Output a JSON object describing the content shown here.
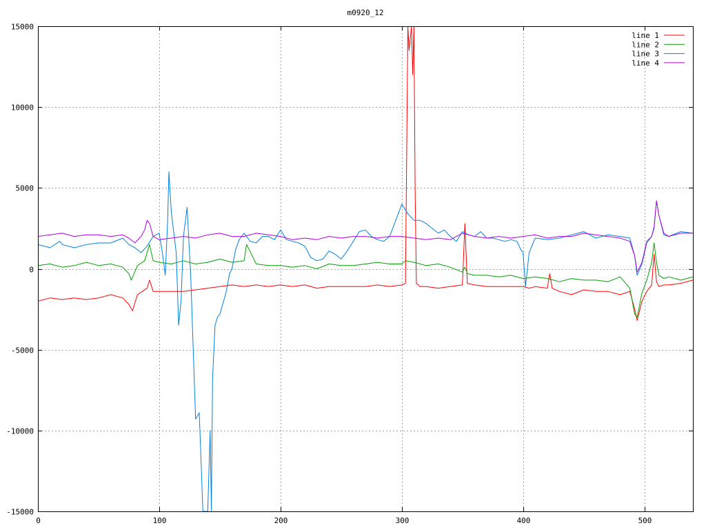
{
  "chart_data": {
    "type": "line",
    "title": "m0920_12",
    "xlim": [
      0,
      540
    ],
    "ylim": [
      -15000,
      15000
    ],
    "xticks": [
      0,
      100,
      200,
      300,
      400,
      500
    ],
    "yticks": [
      -15000,
      -10000,
      -5000,
      0,
      5000,
      10000,
      15000
    ],
    "grid": true,
    "legend_position": "top-right",
    "series": [
      {
        "name": "line 1",
        "color": "#ff0000",
        "x": [
          0,
          10,
          20,
          30,
          40,
          50,
          60,
          70,
          75,
          78,
          82,
          90,
          92,
          95,
          100,
          110,
          120,
          130,
          140,
          150,
          160,
          170,
          180,
          190,
          200,
          210,
          220,
          230,
          240,
          250,
          260,
          270,
          280,
          290,
          300,
          303,
          305,
          306,
          308,
          309,
          310,
          311,
          312,
          315,
          320,
          330,
          340,
          350,
          352,
          354,
          360,
          370,
          380,
          390,
          400,
          405,
          410,
          420,
          422,
          424,
          430,
          440,
          450,
          460,
          470,
          480,
          488,
          492,
          494,
          498,
          502,
          506,
          508,
          510,
          512,
          516,
          520,
          530,
          540
        ],
        "y": [
          -2000,
          -1800,
          -1900,
          -1800,
          -1900,
          -1800,
          -1600,
          -1800,
          -2200,
          -2600,
          -1600,
          -1200,
          -700,
          -1400,
          -1400,
          -1400,
          -1400,
          -1300,
          -1200,
          -1100,
          -1000,
          -1100,
          -1000,
          -1100,
          -1000,
          -1100,
          -1000,
          -1200,
          -1100,
          -1100,
          -1100,
          -1100,
          -1000,
          -1100,
          -1000,
          -900,
          15000,
          13500,
          15000,
          12000,
          15000,
          5000,
          -900,
          -1100,
          -1100,
          -1200,
          -1100,
          -1000,
          2800,
          -900,
          -1000,
          -1100,
          -1100,
          -1100,
          -1100,
          -1200,
          -1100,
          -1200,
          -300,
          -1200,
          -1400,
          -1600,
          -1300,
          -1400,
          -1400,
          -1600,
          -1400,
          -2500,
          -3200,
          -2000,
          -1400,
          -1000,
          900,
          -800,
          -1100,
          -1000,
          -1000,
          -900,
          -700
        ]
      },
      {
        "name": "line 2",
        "color": "#00a000",
        "x": [
          0,
          10,
          20,
          30,
          40,
          50,
          60,
          70,
          75,
          77,
          82,
          88,
          92,
          95,
          100,
          110,
          120,
          130,
          140,
          150,
          160,
          170,
          172,
          180,
          190,
          200,
          210,
          220,
          230,
          240,
          250,
          260,
          270,
          280,
          290,
          300,
          303,
          310,
          320,
          330,
          340,
          350,
          352,
          354,
          360,
          370,
          380,
          390,
          400,
          410,
          420,
          430,
          440,
          450,
          460,
          470,
          480,
          488,
          492,
          494,
          498,
          502,
          506,
          508,
          510,
          512,
          516,
          520,
          530,
          540
        ],
        "y": [
          200,
          300,
          100,
          200,
          400,
          200,
          300,
          100,
          -300,
          -700,
          200,
          500,
          1500,
          500,
          400,
          300,
          500,
          300,
          400,
          600,
          400,
          500,
          1500,
          300,
          200,
          200,
          100,
          200,
          0,
          300,
          200,
          200,
          300,
          400,
          300,
          300,
          500,
          400,
          200,
          300,
          100,
          -200,
          100,
          -300,
          -400,
          -400,
          -500,
          -400,
          -600,
          -500,
          -600,
          -800,
          -600,
          -700,
          -700,
          -800,
          -500,
          -1200,
          -2800,
          -3000,
          -1500,
          -700,
          400,
          1600,
          400,
          -400,
          -600,
          -500,
          -700,
          -500
        ]
      },
      {
        "name": "line 3",
        "color": "#0080e0",
        "x": [
          0,
          10,
          18,
          20,
          30,
          40,
          50,
          60,
          70,
          75,
          80,
          85,
          90,
          95,
          100,
          103,
          105,
          107,
          108,
          110,
          114,
          116,
          118,
          120,
          123,
          126,
          130,
          133,
          136,
          139,
          140,
          142,
          143,
          144,
          146,
          148,
          150,
          155,
          158,
          160,
          163,
          166,
          170,
          175,
          180,
          185,
          190,
          195,
          200,
          205,
          210,
          215,
          220,
          225,
          230,
          235,
          240,
          245,
          250,
          255,
          260,
          265,
          270,
          275,
          280,
          285,
          290,
          295,
          300,
          305,
          310,
          315,
          320,
          325,
          330,
          335,
          340,
          345,
          350,
          355,
          360,
          365,
          370,
          375,
          380,
          385,
          390,
          395,
          398,
          400,
          402,
          405,
          410,
          420,
          430,
          440,
          450,
          460,
          470,
          480,
          488,
          492,
          494,
          498,
          502,
          506,
          508,
          510,
          512,
          516,
          520,
          530,
          540
        ],
        "y": [
          1500,
          1300,
          1700,
          1500,
          1300,
          1500,
          1600,
          1600,
          1900,
          1500,
          1300,
          1000,
          1400,
          2000,
          2200,
          800,
          -400,
          3000,
          6000,
          3500,
          1000,
          -3500,
          -2000,
          2000,
          3800,
          -500,
          -9300,
          -8900,
          -15000,
          -15000,
          -15000,
          -10000,
          -15000,
          -6800,
          -3500,
          -3000,
          -2800,
          -1500,
          -300,
          0,
          1200,
          1800,
          2200,
          1700,
          1600,
          2000,
          2000,
          1800,
          2400,
          1800,
          1700,
          1600,
          1400,
          700,
          500,
          600,
          1100,
          900,
          600,
          1100,
          1700,
          2300,
          2400,
          2000,
          1800,
          1700,
          2000,
          3000,
          4000,
          3400,
          3000,
          3000,
          2800,
          2500,
          2200,
          2400,
          2000,
          1700,
          2300,
          2100,
          2000,
          2300,
          1900,
          1900,
          1800,
          1700,
          1800,
          1700,
          1200,
          1000,
          -1100,
          1000,
          1900,
          1800,
          1900,
          2100,
          2300,
          1900,
          2100,
          2000,
          1900,
          800,
          -400,
          300,
          1600,
          2000,
          2500,
          4200,
          3300,
          2100,
          2000,
          2300,
          2200
        ]
      },
      {
        "name": "line 4",
        "color": "#b000e0",
        "x": [
          0,
          10,
          20,
          30,
          40,
          50,
          60,
          70,
          75,
          80,
          85,
          88,
          90,
          92,
          95,
          100,
          110,
          120,
          130,
          140,
          150,
          160,
          170,
          180,
          190,
          200,
          210,
          220,
          230,
          240,
          250,
          260,
          270,
          280,
          290,
          300,
          310,
          320,
          330,
          340,
          350,
          360,
          370,
          380,
          390,
          400,
          410,
          420,
          430,
          440,
          450,
          460,
          470,
          480,
          488,
          492,
          494,
          498,
          502,
          506,
          508,
          510,
          512,
          516,
          520,
          530,
          540
        ],
        "y": [
          2000,
          2100,
          2200,
          2000,
          2100,
          2100,
          2000,
          2100,
          1900,
          1600,
          2000,
          2400,
          3000,
          2800,
          2000,
          1800,
          1900,
          2000,
          1900,
          2100,
          2200,
          2000,
          2000,
          2200,
          2100,
          2000,
          1800,
          1900,
          1800,
          2000,
          1900,
          2000,
          2000,
          1900,
          2000,
          2000,
          1900,
          1800,
          1900,
          1800,
          2200,
          2000,
          1900,
          2000,
          1900,
          2000,
          2100,
          1900,
          2000,
          2000,
          2200,
          2100,
          2000,
          1900,
          1700,
          800,
          -200,
          400,
          1700,
          2000,
          2600,
          4200,
          3300,
          2200,
          2000,
          2200,
          2200
        ]
      }
    ]
  }
}
